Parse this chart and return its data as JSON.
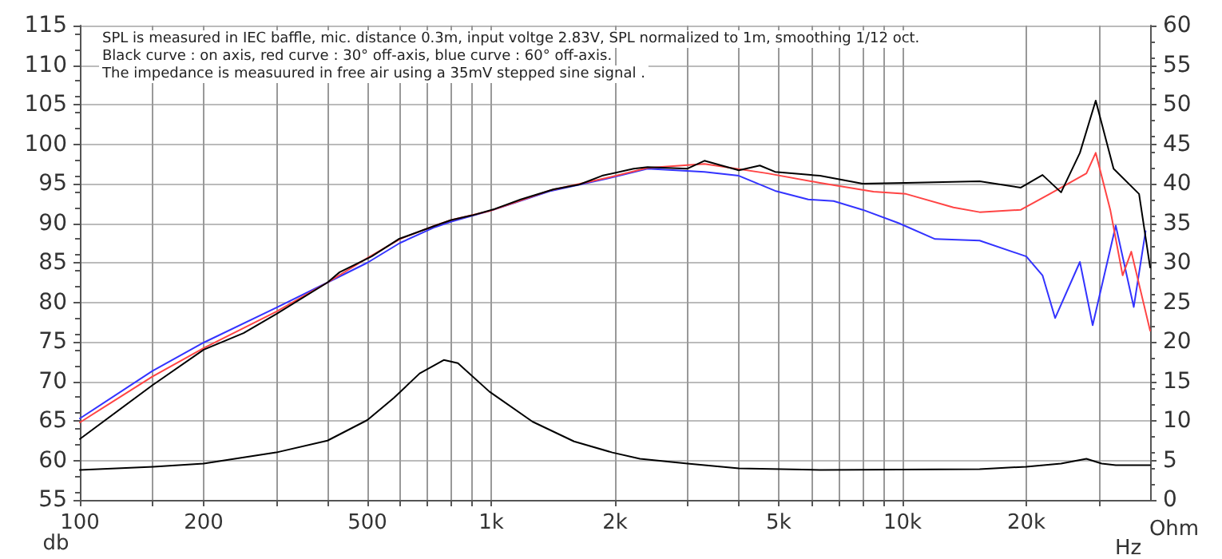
{
  "chart_data": {
    "type": "line",
    "xlabel": "Hz",
    "ylabel": "db",
    "y2label": "Ohm",
    "log": "x",
    "grid": true,
    "marker": "none",
    "line_style": "solid",
    "xlim": [
      100,
      40000
    ],
    "xticks": [
      100,
      {
        "value": 150,
        "label": null
      },
      200,
      {
        "value": 300,
        "label": null
      },
      {
        "value": 400,
        "label": null
      },
      500,
      {
        "value": 600,
        "label": null
      },
      {
        "value": 700,
        "label": null
      },
      {
        "value": 800,
        "label": null
      },
      {
        "value": 900,
        "label": null
      },
      {
        "value": 1000,
        "label": "1k"
      },
      {
        "value": 2000,
        "label": "2k"
      },
      {
        "value": 3000,
        "label": null
      },
      {
        "value": 4000,
        "label": null
      },
      {
        "value": 5000,
        "label": "5k"
      },
      {
        "value": 6000,
        "label": null
      },
      {
        "value": 7000,
        "label": null
      },
      {
        "value": 8000,
        "label": null
      },
      {
        "value": 9000,
        "label": null
      },
      {
        "value": 10000,
        "label": "10k"
      },
      {
        "value": 20000,
        "label": "20k"
      },
      {
        "value": 30000,
        "label": null
      }
    ],
    "ylim": [
      55,
      115
    ],
    "yticks": [
      55,
      60,
      65,
      70,
      75,
      80,
      85,
      90,
      95,
      100,
      105,
      110,
      115
    ],
    "y2lim": [
      0,
      60
    ],
    "y2ticks": [
      0,
      5,
      10,
      15,
      20,
      25,
      30,
      35,
      40,
      45,
      50,
      55,
      60
    ],
    "annotations": [
      "SPL is measured in IEC baffle, mic. distance 0.3m, input voltge 2.83V, SPL normalized to 1m, smoothing 1/12 oct.",
      "Black curve : on axis, red curve : 30° off-axis, blue curve : 60° off-axis.",
      "The impedance is measuured in free air using a 35mV stepped sine signal ."
    ],
    "series": [
      {
        "color": "#3333ff",
        "x": [
          100,
          150,
          200,
          300,
          400,
          500,
          600,
          730,
          800,
          1000,
          1400,
          1900,
          2400,
          3300,
          4000,
          4900,
          5900,
          6800,
          8000,
          9800,
          12000,
          15400,
          20000,
          21900,
          23500,
          27000,
          29000,
          33000,
          36500,
          39000
        ],
        "values": [
          65.3,
          71.3,
          74.9,
          79.3,
          82.5,
          85,
          87.5,
          89.5,
          90.2,
          91.6,
          94.1,
          95.6,
          96.9,
          96.5,
          96,
          94.1,
          93,
          92.8,
          91.7,
          90,
          88,
          87.8,
          85.8,
          83.4,
          78,
          85.1,
          77.1,
          89.7,
          79.4,
          89
        ]
      },
      {
        "color": "#ff4444",
        "x": [
          100,
          150,
          200,
          300,
          400,
          500,
          600,
          730,
          800,
          1000,
          1400,
          1900,
          2400,
          3300,
          4700,
          6300,
          8500,
          10200,
          13300,
          15400,
          19400,
          22800,
          28000,
          29500,
          32000,
          34300,
          36000,
          40000
        ],
        "values": [
          64.8,
          70.6,
          74.2,
          78.8,
          82.5,
          85.6,
          88,
          89.7,
          90.4,
          91.6,
          94.2,
          95.7,
          97,
          97.5,
          96.3,
          95.1,
          94,
          93.7,
          92,
          91.4,
          91.7,
          93.7,
          96.3,
          98.9,
          91.7,
          83.4,
          86.4,
          76.4
        ]
      },
      {
        "color": "#000000",
        "x": [
          100,
          150,
          200,
          250,
          300,
          400,
          428,
          512,
          596,
          732,
          800,
          900,
          1020,
          1180,
          1420,
          1640,
          1860,
          2220,
          2400,
          3000,
          3300,
          4000,
          4500,
          4900,
          6300,
          8000,
          10200,
          15400,
          19400,
          21900,
          24300,
          27000,
          29500,
          32600,
          37600,
          40000
        ],
        "values": [
          62.7,
          69.5,
          74,
          76.1,
          78.5,
          82.5,
          83.8,
          85.8,
          88,
          89.7,
          90.4,
          91,
          91.8,
          93,
          94.3,
          94.9,
          96,
          96.9,
          97.1,
          96.9,
          97.9,
          96.7,
          97.3,
          96.5,
          96,
          95,
          95.1,
          95.3,
          94.5,
          96.1,
          93.9,
          98.9,
          105.5,
          96.9,
          93.7,
          84.4
        ]
      },
      {
        "color": "#000000",
        "axis": "y2",
        "x": [
          100,
          151,
          200,
          300,
          400,
          500,
          580,
          670,
          767,
          830,
          990,
          1260,
          1590,
          1970,
          2300,
          3000,
          4000,
          6300,
          15400,
          20000,
          24300,
          28000,
          30500,
          33000,
          40000
        ],
        "values": [
          3.8,
          4.2,
          4.6,
          6,
          7.5,
          10.1,
          12.9,
          16,
          17.7,
          17.3,
          13.7,
          9.9,
          7.4,
          6,
          5.2,
          4.6,
          4,
          3.8,
          3.9,
          4.2,
          4.6,
          5.2,
          4.6,
          4.4,
          4.4
        ]
      }
    ]
  }
}
